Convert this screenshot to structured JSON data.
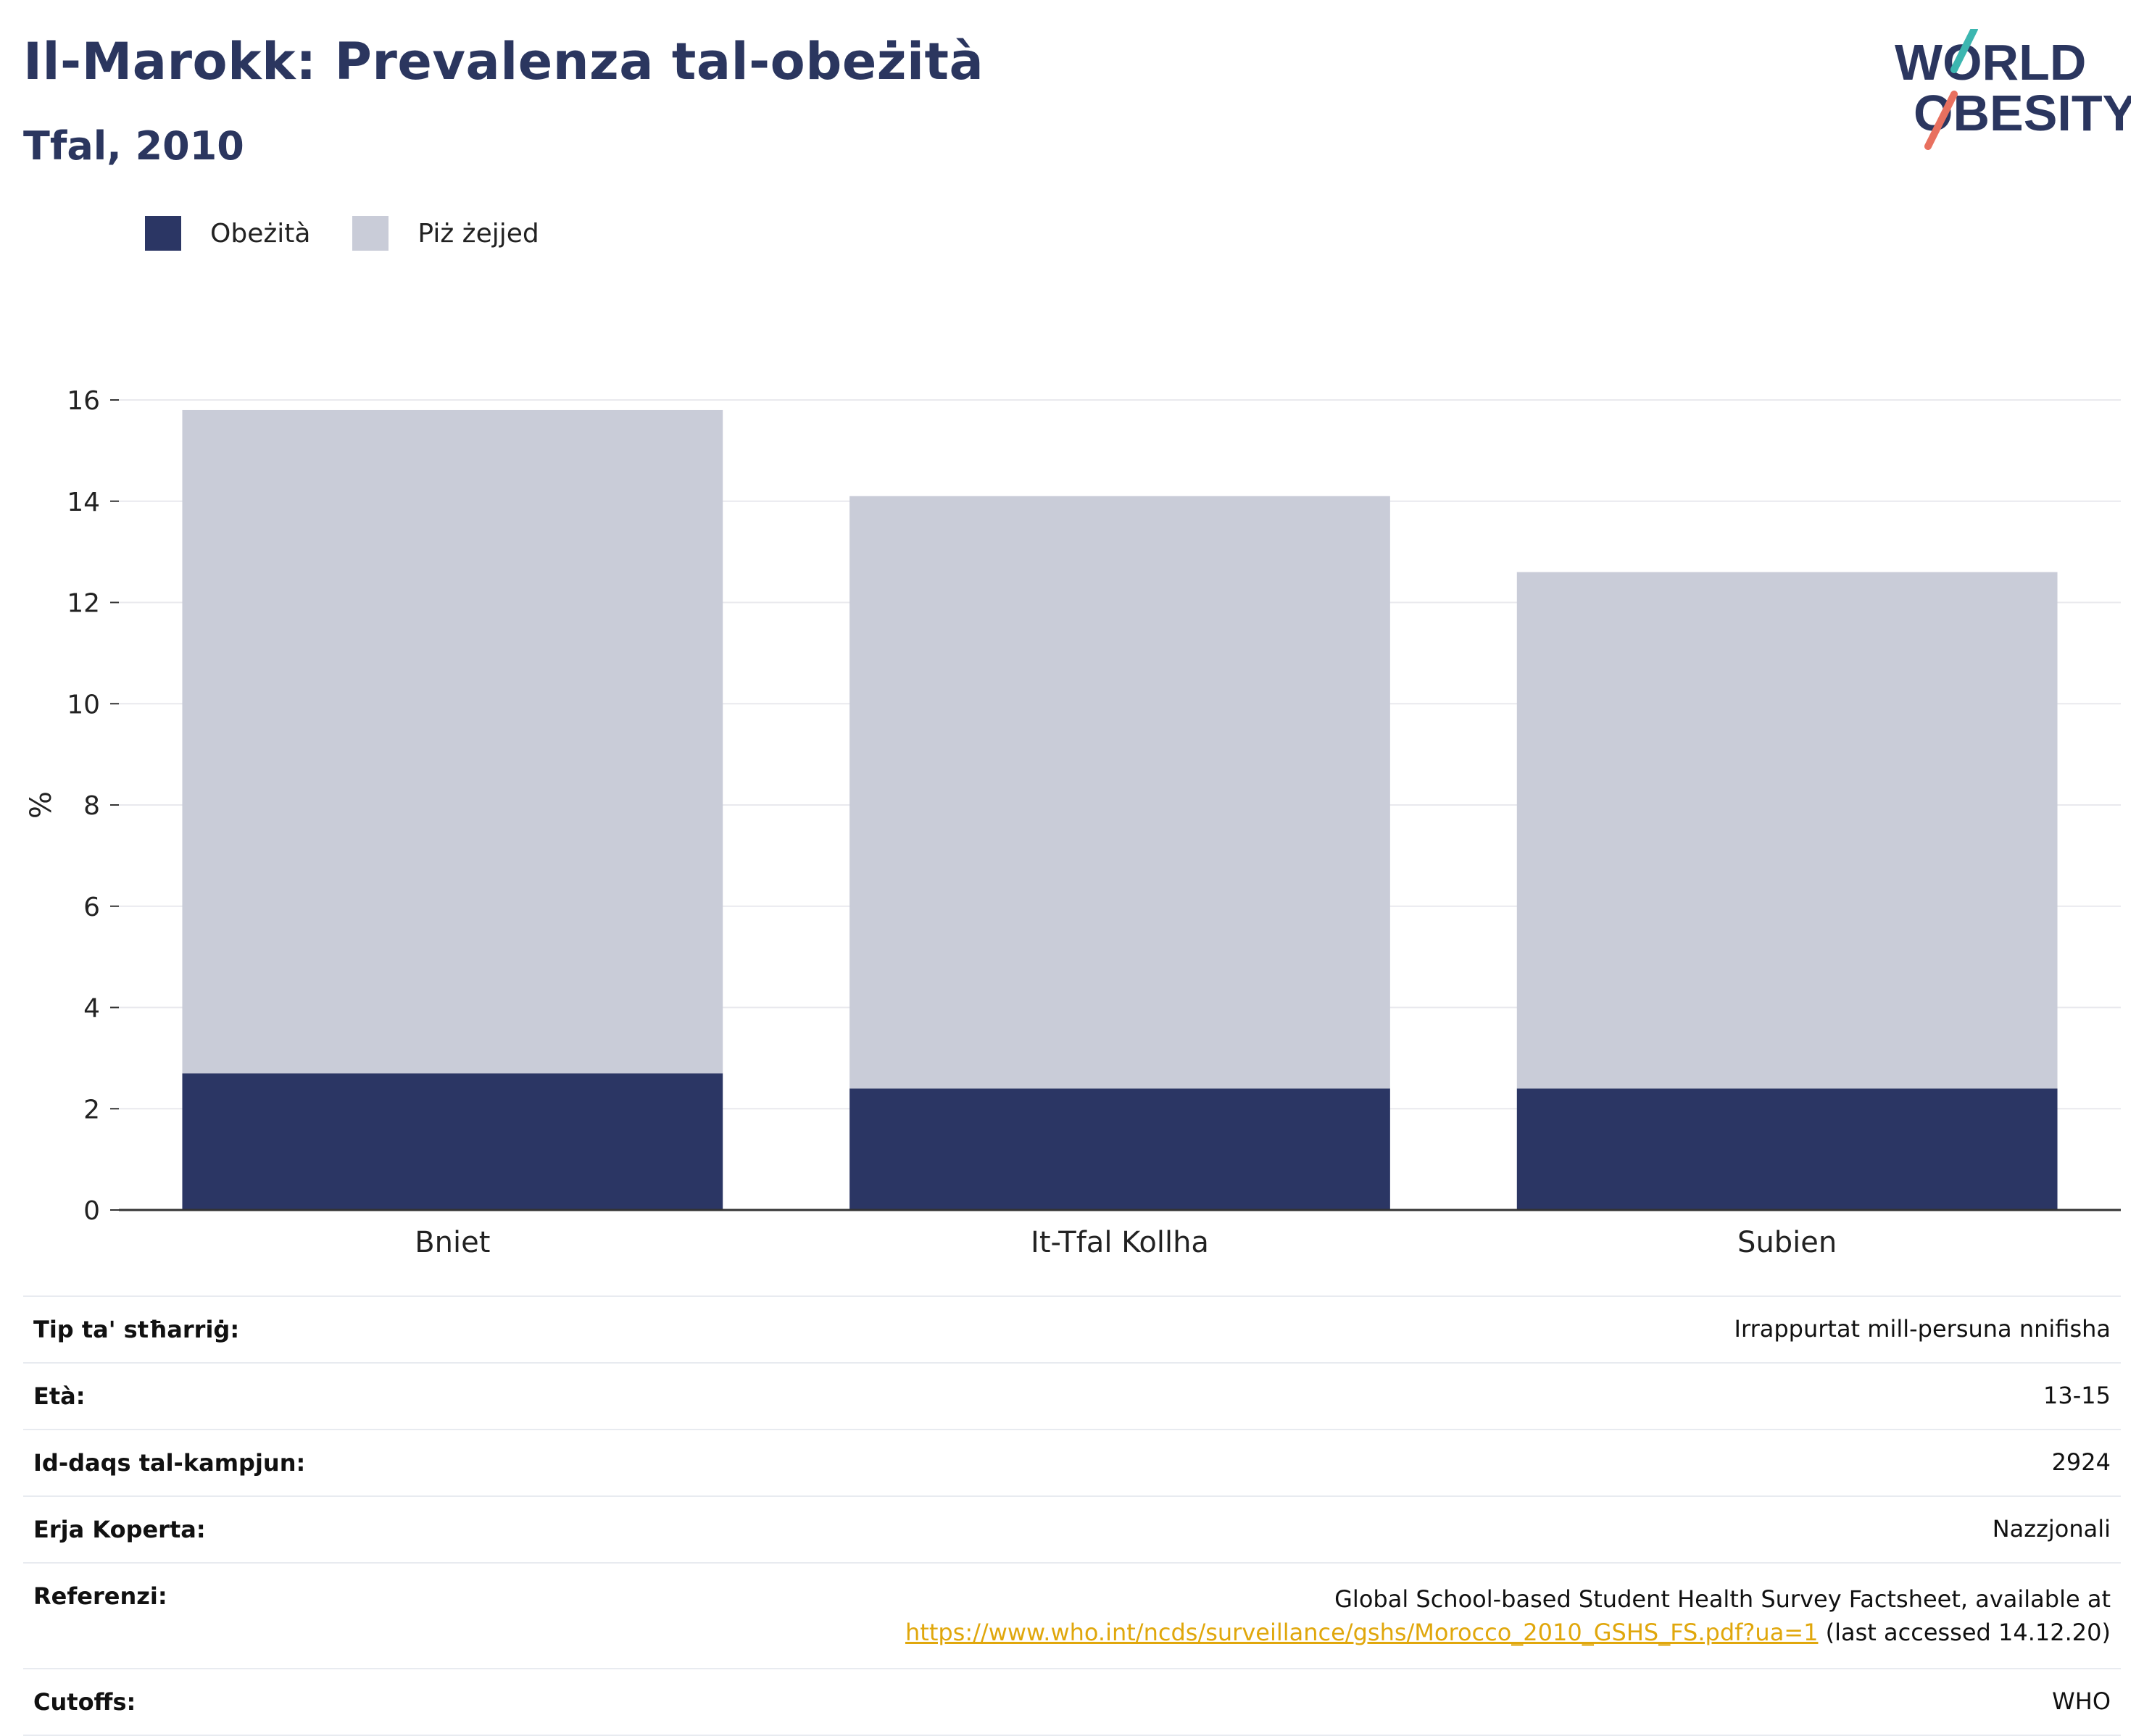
{
  "header": {
    "title": "Il-Marokk: Prevalenza tal-obeżità",
    "subtitle": "Tfal, 2010",
    "logo_line1": "WORLD",
    "logo_line2": "OBESITY"
  },
  "colors": {
    "obesity": "#2b3664",
    "overweight": "#c9ccd8",
    "title": "#2b365f",
    "logo_teal": "#3cb6b0",
    "logo_coral": "#e8705f"
  },
  "chart_data": {
    "type": "bar",
    "stacked": true,
    "categories": [
      "Bniet",
      "It-Tfal Kollha",
      "Subien"
    ],
    "series": [
      {
        "name": "Obeżità",
        "values": [
          2.7,
          2.4,
          2.4
        ]
      },
      {
        "name": "Piż żejjed",
        "values": [
          13.1,
          11.7,
          10.2
        ]
      }
    ],
    "totals": [
      15.8,
      14.1,
      12.6
    ],
    "title": "Il-Marokk: Prevalenza tal-obeżità",
    "subtitle": "Tfal, 2010",
    "xlabel": "",
    "ylabel": "%",
    "ylim": [
      0,
      16
    ],
    "yticks": [
      0,
      2,
      4,
      6,
      8,
      10,
      12,
      14,
      16
    ],
    "grid": true,
    "legend": "top-left"
  },
  "info": {
    "rows": [
      {
        "label": "Tip ta' stħarriġ:",
        "value": "Irrappurtat mill-persuna nnifisha"
      },
      {
        "label": "Età:",
        "value": "13-15"
      },
      {
        "label": "Id-daqs tal-kampjun:",
        "value": "2924"
      },
      {
        "label": "Erja Koperta:",
        "value": "Nazzjonali"
      }
    ],
    "reference": {
      "label": "Referenzi:",
      "text": "Global School-based Student Health Survey Factsheet, available at",
      "link": "https://www.who.int/ncds/surveillance/gshs/Morocco_2010_GSHS_FS.pdf?ua=1",
      "suffix": " (last accessed 14.12.20)"
    },
    "cutoffs": {
      "label": "Cutoffs:",
      "value": "WHO"
    }
  }
}
